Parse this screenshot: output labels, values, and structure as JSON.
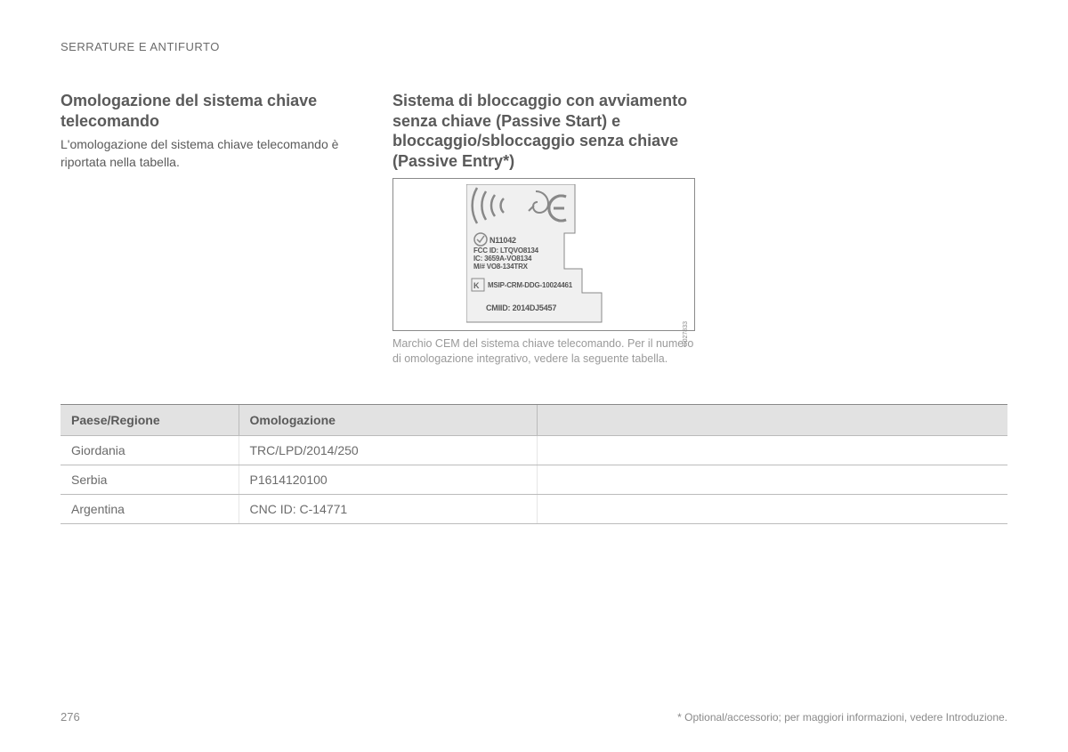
{
  "section_header": "SERRATURE E ANTIFURTO",
  "left": {
    "heading": "Omologazione del sistema chiave telecomando",
    "body": "L'omologazione del sistema chiave telecomando è riportata nella tabella."
  },
  "right": {
    "heading": "Sistema di bloccaggio con avviamento senza chiave (Passive Start) e bloccaggio/sbloccaggio senza chiave (Passive Entry*)",
    "label_lines": {
      "n_mark": "N11042",
      "fcc": "FCC ID: LTQVO8134",
      "ic": "IC: 3659A-VO8134",
      "mnr": "M/# VO8-134TRX",
      "msip": "MSIP-CRM-DDG-10024461",
      "cmiid": "CMIID: 2014DJ5457"
    },
    "fig_code": "G027833",
    "caption": "Marchio CEM del sistema chiave telecomando. Per il numero di omologazione integrativo, vedere la seguente tabella."
  },
  "table": {
    "headers": {
      "country": "Paese/Regione",
      "approval": "Omologazione",
      "blank": ""
    },
    "rows": [
      {
        "country": "Giordania",
        "approval": "TRC/LPD/2014/250"
      },
      {
        "country": "Serbia",
        "approval": "P1614120100"
      },
      {
        "country": "Argentina",
        "approval": "CNC ID: C-14771"
      }
    ],
    "col_country_width": 200,
    "col_approval_width": 335
  },
  "page_number": "276",
  "footnote": "* Optional/accessorio; per maggiori informazioni, vedere Introduzione."
}
